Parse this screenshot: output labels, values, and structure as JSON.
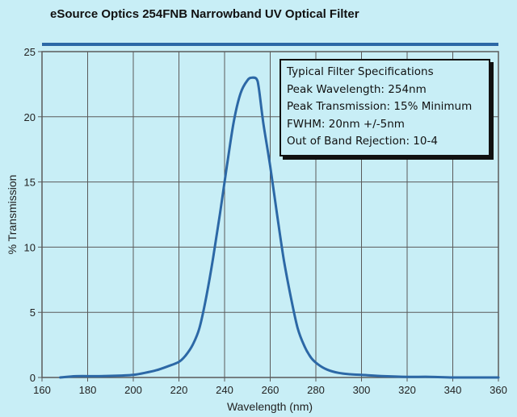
{
  "title": "eSource Optics 254FNB Narrowband UV Optical Filter",
  "specs": {
    "heading": "Typical Filter Specifications",
    "lines": [
      "Peak Wavelength: 254nm",
      "Peak Transmission: 15% Minimum",
      "FWHM: 20nm +/-5nm",
      "Out of Band Rejection: 10-4"
    ]
  },
  "colors": {
    "background": "#c8eef6",
    "curve": "#2c68a6",
    "grid": "#5a5a5a",
    "rule": "#2c68a6"
  },
  "chart_data": {
    "type": "line",
    "title": "eSource Optics 254FNB Narrowband UV Optical Filter",
    "xlabel": "Wavelength (nm)",
    "ylabel": "% Transmission",
    "xlim": [
      160,
      360
    ],
    "ylim": [
      0,
      25
    ],
    "xticks": [
      160,
      180,
      200,
      220,
      240,
      260,
      280,
      300,
      320,
      340,
      360
    ],
    "yticks": [
      0,
      5,
      10,
      15,
      20,
      25
    ],
    "grid": true,
    "series": [
      {
        "x": [
          168,
          175,
          185,
          195,
          200,
          205,
          210,
          215,
          220,
          223,
          226,
          229,
          232,
          235,
          238,
          241,
          244,
          247,
          250,
          252,
          254,
          255,
          257,
          260,
          263,
          266,
          269,
          272,
          275,
          278,
          281,
          285,
          290,
          295,
          300,
          310,
          320,
          330,
          340,
          350,
          360
        ],
        "y": [
          0.0,
          0.1,
          0.1,
          0.15,
          0.2,
          0.35,
          0.55,
          0.85,
          1.2,
          1.7,
          2.5,
          3.8,
          6.2,
          9.2,
          12.6,
          16.2,
          19.6,
          21.8,
          22.8,
          23.0,
          22.9,
          22.2,
          19.5,
          16.2,
          12.5,
          9.0,
          6.2,
          3.8,
          2.4,
          1.5,
          1.0,
          0.6,
          0.35,
          0.25,
          0.2,
          0.1,
          0.05,
          0.05,
          0.0,
          0.0,
          0.0
        ]
      }
    ]
  }
}
